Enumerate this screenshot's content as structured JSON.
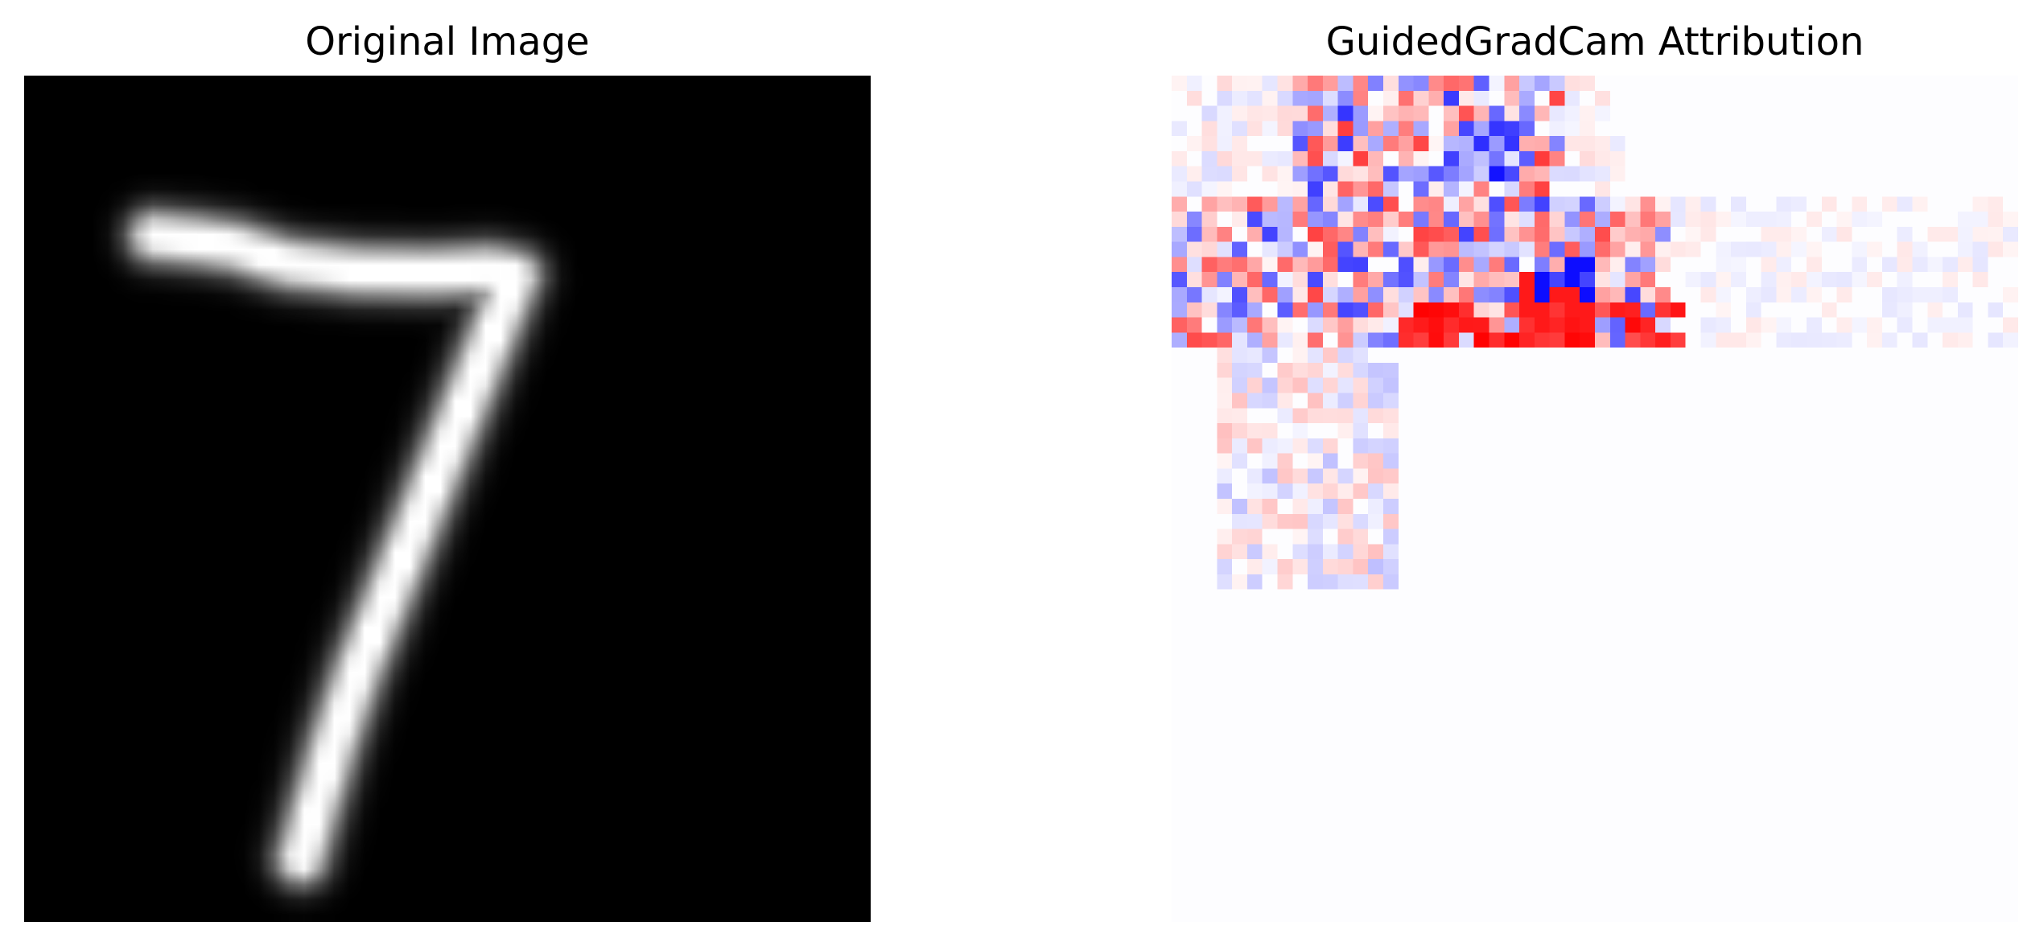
{
  "panels": {
    "left": {
      "title": "Original Image",
      "colormap": "gray",
      "colors": {
        "background": "#000000",
        "foreground": "#ffffff"
      },
      "content": "handwritten-digit-seven"
    },
    "right": {
      "title": "GuidedGradCam Attribution",
      "colormap": "bwr",
      "colors": {
        "negative": "#0000ff",
        "neutral": "#ffffff",
        "positive": "#ff0000"
      },
      "content": "attribution-heatmap"
    }
  }
}
